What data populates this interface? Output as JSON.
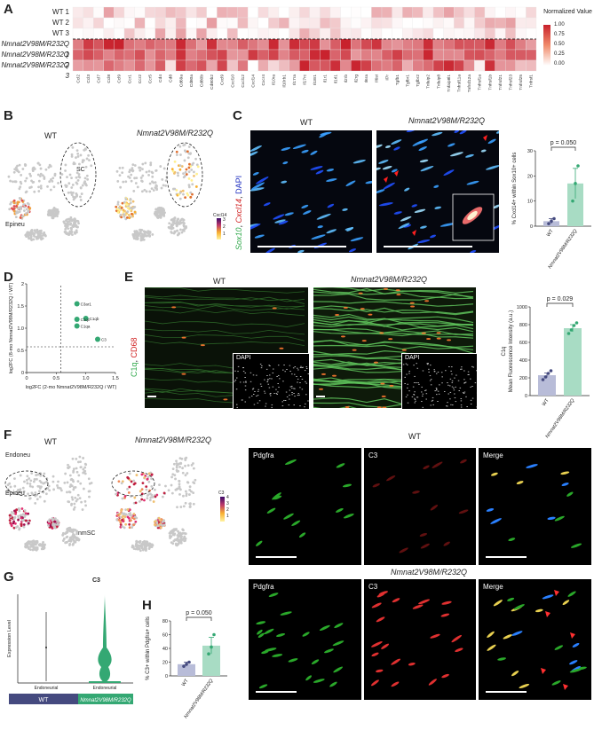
{
  "panels": {
    "A": "A",
    "B": "B",
    "C": "C",
    "D": "D",
    "E": "E",
    "F": "F",
    "G": "G",
    "H": "H"
  },
  "heatmap": {
    "rows": [
      "WT 1",
      "WT 2",
      "WT 3",
      "Nmnat2V98M/R232Q 1",
      "Nmnat2V98M/R232Q 2",
      "Nmnat2V98M/R232Q 3"
    ],
    "columns": [
      "Ccl2",
      "Ccl3",
      "Ccl7",
      "Ccl8",
      "Ccl9",
      "Ccr1",
      "Ccr2",
      "Ccr5",
      "Cd4",
      "Cd8",
      "Cd69a",
      "Cd80a",
      "Cd80b",
      "Cd80b2",
      "Cxcl9",
      "Cxcl10",
      "Cxcl12",
      "Cxcl14",
      "Cxcr4",
      "Il10ra",
      "Il10rb1",
      "Il17ra",
      "Il17rc",
      "Il18r1",
      "Il1r1",
      "Il1rl1",
      "Il2rb",
      "Il2rg",
      "Il6ra",
      "Il6st",
      "Il7r",
      "Tgfb1",
      "Tgfbr1",
      "Tgfbr2",
      "Tnfaip2",
      "Tnfaip8",
      "Tnfaip8l1",
      "Tnfrsf11a",
      "Tnfrsf12a",
      "Tnfrsf1a",
      "Tnfrsf1b",
      "Tnfrsf21",
      "Tnfrsf23",
      "Tnfrsf25",
      "Tnfrsf1"
    ],
    "legend_title": "Normalized Value",
    "legend_ticks": [
      "1.00",
      "0.75",
      "0.50",
      "0.25",
      "0.00"
    ],
    "colors": {
      "low": "#ffffff",
      "high": "#c8202b"
    }
  },
  "panel_b": {
    "wt": "WT",
    "mut": "Nmnat2V98M/R232Q",
    "sc_label": "SC",
    "epineu_label": "Epineu",
    "legend_title": "Cxcl14",
    "legend_ticks": [
      "3",
      "2",
      "1"
    ]
  },
  "panel_c": {
    "wt": "WT",
    "mut": "Nmnat2V98M/R232Q",
    "stain_sox10": "Sox10",
    "stain_cxcl14": "Cxcl14",
    "stain_dapi": "DAPI",
    "chart_data": {
      "type": "bar",
      "categories": [
        "WT",
        "Nmnat2V98M/R232Q"
      ],
      "values": [
        2,
        17
      ],
      "errors": [
        1,
        6
      ],
      "points": [
        [
          1,
          2,
          3
        ],
        [
          10,
          17,
          24
        ]
      ],
      "ylabel": "% Cxcl14+ within Sox10+ cells",
      "ylim": [
        0,
        30
      ],
      "yticks": [
        0,
        10,
        20,
        30
      ],
      "pvalue": "p = 0.050"
    }
  },
  "panel_d": {
    "chart_data": {
      "type": "scatter",
      "points": [
        {
          "label": "C3ar1",
          "x": 0.85,
          "y": 1.55
        },
        {
          "label": "C1qb",
          "x": 1.0,
          "y": 1.22
        },
        {
          "label": "C1qc",
          "x": 0.85,
          "y": 1.2
        },
        {
          "label": "C1qa",
          "x": 0.85,
          "y": 1.05
        },
        {
          "label": "C3",
          "x": 1.2,
          "y": 0.75
        }
      ],
      "xlim": [
        0,
        1.5
      ],
      "ylim": [
        0,
        2
      ],
      "xticks": [
        "0",
        "0.5",
        "1.0",
        "1.5"
      ],
      "yticks": [
        "0",
        "0.5",
        "1.0",
        "1.5",
        "2"
      ],
      "xlabel": "log2FC (2-mo Nmnat2V98M/R232Q / WT)",
      "ylabel": "log2FC (8-mo Nmnat2V98M/R232Q / WT)",
      "threshold": 0.58
    }
  },
  "panel_e": {
    "wt": "WT",
    "mut": "Nmnat2V98M/R232Q",
    "stain_c1q": "C1q",
    "stain_cd68": "CD68",
    "inset": "DAPI",
    "chart_data": {
      "type": "bar",
      "categories": [
        "WT",
        "Nmnat2V98M/R232Q"
      ],
      "values": [
        230,
        760
      ],
      "errors": [
        25,
        40
      ],
      "points": [
        [
          180,
          210,
          250,
          280
        ],
        [
          700,
          740,
          790,
          820
        ]
      ],
      "title": "C1q",
      "ylabel": "Mean Fluorescence Intensity (a.u.)",
      "ylim": [
        0,
        1000
      ],
      "yticks": [
        0,
        200,
        400,
        600,
        800,
        1000
      ],
      "pvalue": "p = 0.029"
    }
  },
  "panel_f": {
    "wt": "WT",
    "mut": "Nmnat2V98M/R232Q",
    "endoneu": "Endoneu",
    "epineu": "Epineu",
    "nmsc": "nmSC",
    "legend_title": "C3",
    "legend_ticks": [
      "4",
      "3",
      "2",
      "1"
    ],
    "micro_wt": "WT",
    "micro_mut": "Nmnat2V98M/R232Q",
    "channels": [
      "Pdgfra",
      "C3",
      "Merge"
    ]
  },
  "panel_g": {
    "title": "C3",
    "ylabel": "Expression Level",
    "chart_data": {
      "type": "violin",
      "categories": [
        "Endoneurial",
        "Endoneurial"
      ],
      "groups": [
        "WT",
        "Nmnat2V98M/R232Q"
      ],
      "colors": [
        "#454a7f",
        "#34a873"
      ]
    }
  },
  "panel_h": {
    "chart_data": {
      "type": "bar",
      "categories": [
        "WT",
        "Nmnat2V98M/R232Q"
      ],
      "values": [
        17,
        44
      ],
      "errors": [
        3,
        12
      ],
      "points": [
        [
          14,
          17,
          20
        ],
        [
          32,
          42,
          60
        ]
      ],
      "ylabel": "% C3+ within Pdgfra+ cells",
      "ylim": [
        0,
        80
      ],
      "yticks": [
        0,
        20,
        40,
        60,
        80
      ],
      "pvalue": "p = 0.050"
    }
  }
}
